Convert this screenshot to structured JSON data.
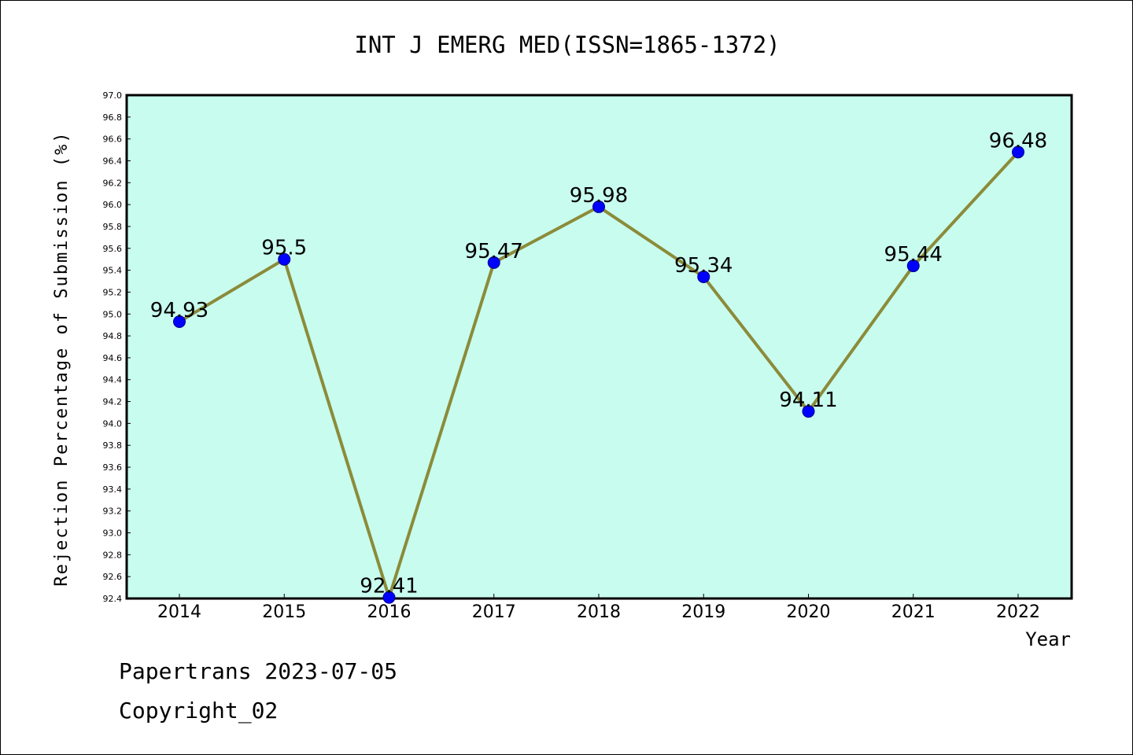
{
  "chart_data": {
    "type": "line",
    "title": "INT J EMERG MED(ISSN=1865-1372)",
    "xlabel": "Year",
    "ylabel": "Rejection Percentage of Submission (%)",
    "categories": [
      "2014",
      "2015",
      "2016",
      "2017",
      "2018",
      "2019",
      "2020",
      "2021",
      "2022"
    ],
    "values": [
      94.93,
      95.5,
      92.41,
      95.47,
      95.98,
      95.34,
      94.11,
      95.44,
      96.48
    ],
    "data_labels": [
      "94.93",
      "95.5",
      "92.41",
      "95.47",
      "95.98",
      "95.34",
      "94.11",
      "95.44",
      "96.48"
    ],
    "ylim": [
      92.4,
      97.0
    ],
    "yticks": [
      "92.4",
      "92.6",
      "92.8",
      "93.0",
      "93.2",
      "93.4",
      "93.6",
      "93.8",
      "94.0",
      "94.2",
      "94.4",
      "94.6",
      "94.8",
      "95.0",
      "95.2",
      "95.4",
      "95.6",
      "95.8",
      "96.0",
      "96.2",
      "96.4",
      "96.6",
      "96.8",
      "97.0"
    ],
    "grid": false,
    "legend": "none",
    "colors": {
      "plot_background": "#c8fcee",
      "line": "#8b8b3a",
      "marker": "#0000ff",
      "marker_edge": "#00008b"
    }
  },
  "footer": {
    "line1": "Papertrans 2023-07-05",
    "line2": "Copyright_02"
  }
}
